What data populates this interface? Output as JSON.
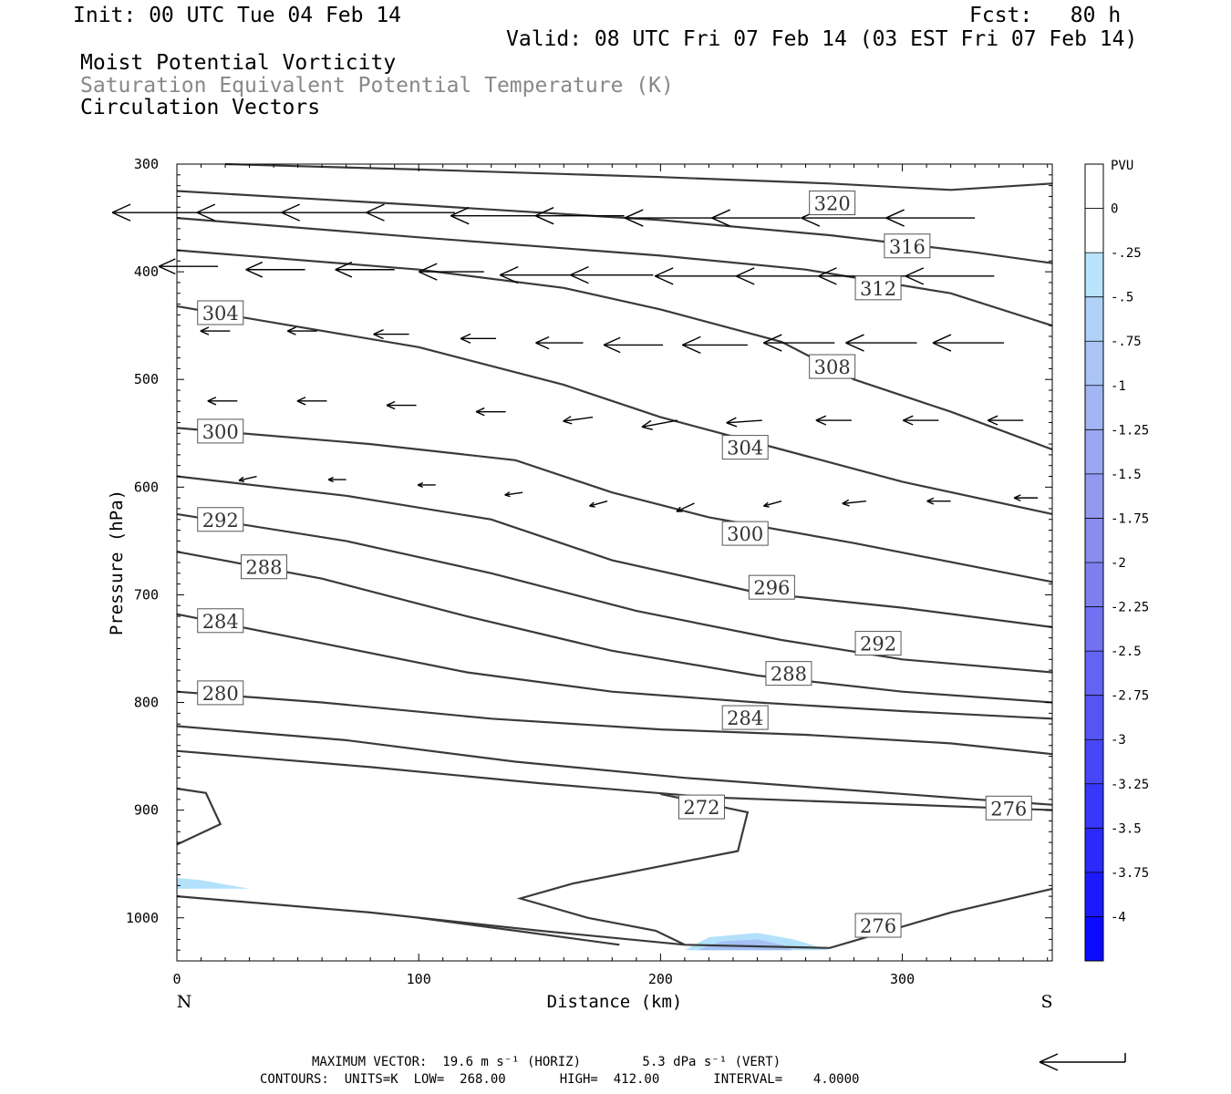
{
  "header": {
    "init": "Init: 00 UTC Tue 04 Feb 14",
    "fcst": "Fcst:   80 h",
    "valid": "Valid: 08 UTC Fri 07 Feb 14 (03 EST Fri 07 Feb 14)",
    "field1": "Moist Potential Vorticity",
    "field2": "Saturation Equivalent Potential Temperature (K)",
    "field3": "Circulation Vectors"
  },
  "footer": {
    "max_vector": "MAXIMUM VECTOR:  19.6 m s⁻¹ (HORIZ)        5.3 dPa s⁻¹ (VERT)",
    "contours": "CONTOURS:  UNITS=K  LOW=  268.00       HIGH=  412.00       INTERVAL=    4.0000"
  },
  "colors": {
    "contour": "#3a3a3a",
    "pv_light": "#b3e1fb",
    "pv_mid": "#a4c0f5",
    "pv_dark": "#8f94ee",
    "axis": "#000000"
  },
  "chart_data": {
    "type": "cross-section",
    "xlabel": "Distance (km)",
    "ylabel": "Pressure (hPa)",
    "xlim": [
      0,
      362
    ],
    "ylim": [
      300,
      1040
    ],
    "x_ticks": [
      "0",
      "100",
      "200",
      "300"
    ],
    "x_tick_values": [
      0,
      100,
      200,
      300
    ],
    "y_ticks": [
      "300",
      "400",
      "500",
      "600",
      "700",
      "800",
      "900",
      "1000"
    ],
    "y_tick_values": [
      300,
      400,
      500,
      600,
      700,
      800,
      900,
      1000
    ],
    "x_end_labels": {
      "left": "N",
      "right": "S"
    },
    "colorbar": {
      "title": "PVU",
      "labels": [
        "0",
        "-.25",
        "-.5",
        "-.75",
        "-1",
        "-1.25",
        "-1.5",
        "-1.75",
        "-2",
        "-2.25",
        "-2.5",
        "-2.75",
        "-3",
        "-3.25",
        "-3.5",
        "-3.75",
        "-4"
      ],
      "colors": [
        "#ffffff",
        "#ffffff",
        "#b9e4fb",
        "#b1d2f8",
        "#aac4f6",
        "#a2b6f4",
        "#9aa8f2",
        "#929af0",
        "#8a8cee",
        "#7f7ff0",
        "#7171f2",
        "#6363f4",
        "#5555f6",
        "#4747f8",
        "#3838fa",
        "#2a2afc",
        "#1a1afd",
        "#0a0aff"
      ]
    },
    "contour_units": "K",
    "contours": [
      {
        "label": "320",
        "label_at": [
          271,
          336
        ],
        "points": [
          [
            20,
            300
          ],
          [
            100,
            305
          ],
          [
            200,
            312
          ],
          [
            270,
            318
          ],
          [
            320,
            324
          ],
          [
            362,
            318
          ]
        ]
      },
      {
        "label": "316",
        "label_at": [
          302,
          376
        ],
        "points": [
          [
            0,
            325
          ],
          [
            100,
            338
          ],
          [
            200,
            352
          ],
          [
            270,
            366
          ],
          [
            330,
            382
          ],
          [
            362,
            392
          ]
        ]
      },
      {
        "label": "312",
        "label_at": [
          290,
          415
        ],
        "points": [
          [
            0,
            350
          ],
          [
            100,
            368
          ],
          [
            200,
            385
          ],
          [
            260,
            398
          ],
          [
            320,
            420
          ],
          [
            362,
            450
          ]
        ]
      },
      {
        "label": "",
        "label_at": null,
        "points": [
          [
            0,
            380
          ],
          [
            100,
            398
          ],
          [
            160,
            415
          ],
          [
            200,
            435
          ],
          [
            250,
            465
          ],
          [
            280,
            500
          ],
          [
            320,
            530
          ],
          [
            362,
            565
          ]
        ]
      },
      {
        "label": "304",
        "label_at": [
          18,
          438
        ],
        "points": [
          [
            0,
            432
          ],
          [
            100,
            470
          ],
          [
            160,
            505
          ],
          [
            200,
            535
          ],
          [
            250,
            565
          ],
          [
            300,
            595
          ],
          [
            362,
            625
          ]
        ]
      },
      {
        "label": "308",
        "label_at": [
          271,
          488
        ],
        "points": []
      },
      {
        "label": "300",
        "label_at": [
          18,
          548
        ],
        "points": [
          [
            0,
            545
          ],
          [
            80,
            560
          ],
          [
            140,
            575
          ],
          [
            180,
            605
          ],
          [
            220,
            628
          ],
          [
            280,
            652
          ],
          [
            362,
            688
          ]
        ]
      },
      {
        "label": "304",
        "label_at": [
          235,
          563
        ],
        "points": []
      },
      {
        "label": "",
        "label_at": null,
        "points": [
          [
            0,
            590
          ],
          [
            70,
            608
          ],
          [
            130,
            630
          ],
          [
            180,
            668
          ],
          [
            240,
            698
          ],
          [
            300,
            712
          ],
          [
            362,
            730
          ]
        ]
      },
      {
        "label": "292",
        "label_at": [
          18,
          630
        ],
        "points": [
          [
            0,
            625
          ],
          [
            70,
            650
          ],
          [
            130,
            680
          ],
          [
            190,
            715
          ],
          [
            250,
            742
          ],
          [
            300,
            760
          ],
          [
            362,
            772
          ]
        ]
      },
      {
        "label": "300",
        "label_at": [
          235,
          643
        ],
        "points": []
      },
      {
        "label": "288",
        "label_at": [
          36,
          674
        ],
        "points": [
          [
            0,
            660
          ],
          [
            60,
            685
          ],
          [
            120,
            720
          ],
          [
            180,
            752
          ],
          [
            240,
            775
          ],
          [
            300,
            790
          ],
          [
            362,
            800
          ]
        ]
      },
      {
        "label": "296",
        "label_at": [
          246,
          693
        ],
        "points": []
      },
      {
        "label": "284",
        "label_at": [
          18,
          724
        ],
        "points": [
          [
            0,
            718
          ],
          [
            60,
            745
          ],
          [
            120,
            772
          ],
          [
            180,
            790
          ],
          [
            240,
            800
          ],
          [
            300,
            808
          ],
          [
            362,
            815
          ]
        ]
      },
      {
        "label": "292",
        "label_at": [
          290,
          745
        ],
        "points": []
      },
      {
        "label": "288",
        "label_at": [
          253,
          773
        ],
        "points": []
      },
      {
        "label": "280",
        "label_at": [
          18,
          791
        ],
        "points": [
          [
            0,
            790
          ],
          [
            60,
            800
          ],
          [
            130,
            815
          ],
          [
            200,
            825
          ],
          [
            260,
            830
          ],
          [
            320,
            838
          ],
          [
            362,
            848
          ]
        ]
      },
      {
        "label": "284",
        "label_at": [
          235,
          814
        ],
        "points": []
      },
      {
        "label": "",
        "label_at": null,
        "points": [
          [
            0,
            822
          ],
          [
            70,
            835
          ],
          [
            140,
            855
          ],
          [
            210,
            870
          ],
          [
            270,
            880
          ],
          [
            330,
            890
          ],
          [
            362,
            895
          ]
        ]
      },
      {
        "label": "276",
        "label_at": [
          344,
          898
        ],
        "points": [
          [
            0,
            845
          ],
          [
            80,
            860
          ],
          [
            150,
            875
          ],
          [
            220,
            888
          ],
          [
            280,
            893
          ],
          [
            340,
            898
          ],
          [
            362,
            900
          ]
        ]
      },
      {
        "label": "272",
        "label_at": [
          217,
          897
        ],
        "points": [
          [
            0,
            880
          ],
          [
            12,
            884
          ],
          [
            18,
            913
          ],
          [
            0,
            932
          ]
        ]
      },
      {
        "label": "",
        "label_at": null,
        "points": [
          [
            200,
            885
          ],
          [
            236,
            902
          ],
          [
            232,
            938
          ],
          [
            216,
            945
          ],
          [
            164,
            968
          ],
          [
            142,
            982
          ],
          [
            170,
            1000
          ],
          [
            198,
            1012
          ],
          [
            210,
            1025
          ]
        ]
      },
      {
        "label": "276",
        "label_at": [
          290,
          1007
        ],
        "points": [
          [
            0,
            980
          ],
          [
            80,
            995
          ],
          [
            150,
            1012
          ],
          [
            210,
            1025
          ],
          [
            270,
            1028
          ],
          [
            320,
            995
          ],
          [
            362,
            973
          ]
        ]
      },
      {
        "label": "",
        "label_at": null,
        "points": [
          [
            100,
            1000
          ],
          [
            140,
            1012
          ],
          [
            183,
            1025
          ]
        ]
      }
    ],
    "pv_shading": [
      {
        "value": -0.25,
        "points": [
          [
            0,
            963
          ],
          [
            10,
            965
          ],
          [
            30,
            973
          ],
          [
            0,
            973
          ]
        ]
      },
      {
        "value": -0.25,
        "points": [
          [
            210,
            1030
          ],
          [
            220,
            1018
          ],
          [
            240,
            1014
          ],
          [
            255,
            1020
          ],
          [
            270,
            1030
          ]
        ]
      },
      {
        "value": -0.5,
        "points": [
          [
            215,
            1030
          ],
          [
            225,
            1022
          ],
          [
            240,
            1020
          ],
          [
            250,
            1025
          ],
          [
            255,
            1030
          ]
        ]
      }
    ],
    "vectors": [
      {
        "x": 10,
        "p": 345,
        "u": -15,
        "w": 0.0
      },
      {
        "x": 45,
        "p": 345,
        "u": -15,
        "w": 0.0
      },
      {
        "x": 80,
        "p": 345,
        "u": -15,
        "w": 0.0
      },
      {
        "x": 115,
        "p": 345,
        "u": -15,
        "w": 0.0
      },
      {
        "x": 150,
        "p": 348,
        "u": -15,
        "w": 0.0
      },
      {
        "x": 185,
        "p": 348,
        "u": -15,
        "w": 0.0
      },
      {
        "x": 222,
        "p": 350,
        "u": -15,
        "w": 0.0
      },
      {
        "x": 258,
        "p": 350,
        "u": -15,
        "w": 0.0
      },
      {
        "x": 295,
        "p": 350,
        "u": -15,
        "w": 0.0
      },
      {
        "x": 330,
        "p": 350,
        "u": -15,
        "w": 0.0
      },
      {
        "x": 17,
        "p": 395,
        "u": -10,
        "w": 0.0
      },
      {
        "x": 53,
        "p": 398,
        "u": -10,
        "w": 0.0
      },
      {
        "x": 90,
        "p": 398,
        "u": -10,
        "w": 0.0
      },
      {
        "x": 127,
        "p": 400,
        "u": -11,
        "w": 0.0
      },
      {
        "x": 163,
        "p": 403,
        "u": -12,
        "w": 0.0
      },
      {
        "x": 197,
        "p": 403,
        "u": -14,
        "w": 0.0
      },
      {
        "x": 232,
        "p": 404,
        "u": -14,
        "w": 0.0
      },
      {
        "x": 268,
        "p": 404,
        "u": -15,
        "w": 0.0
      },
      {
        "x": 302,
        "p": 404,
        "u": -15,
        "w": 0.0
      },
      {
        "x": 338,
        "p": 404,
        "u": -15,
        "w": 0.0
      },
      {
        "x": 22,
        "p": 455,
        "u": -5,
        "w": 0.0
      },
      {
        "x": 58,
        "p": 455,
        "u": -5,
        "w": 0.0
      },
      {
        "x": 96,
        "p": 458,
        "u": -6,
        "w": 0.0
      },
      {
        "x": 132,
        "p": 462,
        "u": -6,
        "w": 0.0
      },
      {
        "x": 168,
        "p": 466,
        "u": -8,
        "w": 0.0
      },
      {
        "x": 201,
        "p": 468,
        "u": -10,
        "w": 0.0
      },
      {
        "x": 236,
        "p": 468,
        "u": -11,
        "w": 0.0
      },
      {
        "x": 272,
        "p": 466,
        "u": -12,
        "w": 0.0
      },
      {
        "x": 306,
        "p": 466,
        "u": -12,
        "w": 0.0
      },
      {
        "x": 342,
        "p": 466,
        "u": -12,
        "w": 0.0
      },
      {
        "x": 25,
        "p": 520,
        "u": -5,
        "w": 0.0
      },
      {
        "x": 62,
        "p": 520,
        "u": -5,
        "w": 0.0
      },
      {
        "x": 99,
        "p": 524,
        "u": -5,
        "w": 0.0
      },
      {
        "x": 136,
        "p": 530,
        "u": -5,
        "w": 0.0
      },
      {
        "x": 172,
        "p": 535,
        "u": -5,
        "w": 0.5
      },
      {
        "x": 207,
        "p": 538,
        "u": -6,
        "w": 0.8
      },
      {
        "x": 242,
        "p": 538,
        "u": -6,
        "w": 0.3
      },
      {
        "x": 279,
        "p": 538,
        "u": -6,
        "w": 0.0
      },
      {
        "x": 315,
        "p": 538,
        "u": -6,
        "w": 0.0
      },
      {
        "x": 350,
        "p": 538,
        "u": -6,
        "w": 0.0
      },
      {
        "x": 33,
        "p": 590,
        "u": -3,
        "w": 0.5
      },
      {
        "x": 70,
        "p": 593,
        "u": -3,
        "w": 0.0
      },
      {
        "x": 107,
        "p": 598,
        "u": -3,
        "w": 0.0
      },
      {
        "x": 143,
        "p": 605,
        "u": -3,
        "w": 0.3
      },
      {
        "x": 178,
        "p": 613,
        "u": -3,
        "w": 0.6
      },
      {
        "x": 214,
        "p": 615,
        "u": -3,
        "w": 1.0
      },
      {
        "x": 250,
        "p": 613,
        "u": -3,
        "w": 0.6
      },
      {
        "x": 285,
        "p": 613,
        "u": -4,
        "w": 0.3
      },
      {
        "x": 320,
        "p": 613,
        "u": -4,
        "w": 0.0
      },
      {
        "x": 356,
        "p": 610,
        "u": -4,
        "w": 0.0
      }
    ]
  }
}
